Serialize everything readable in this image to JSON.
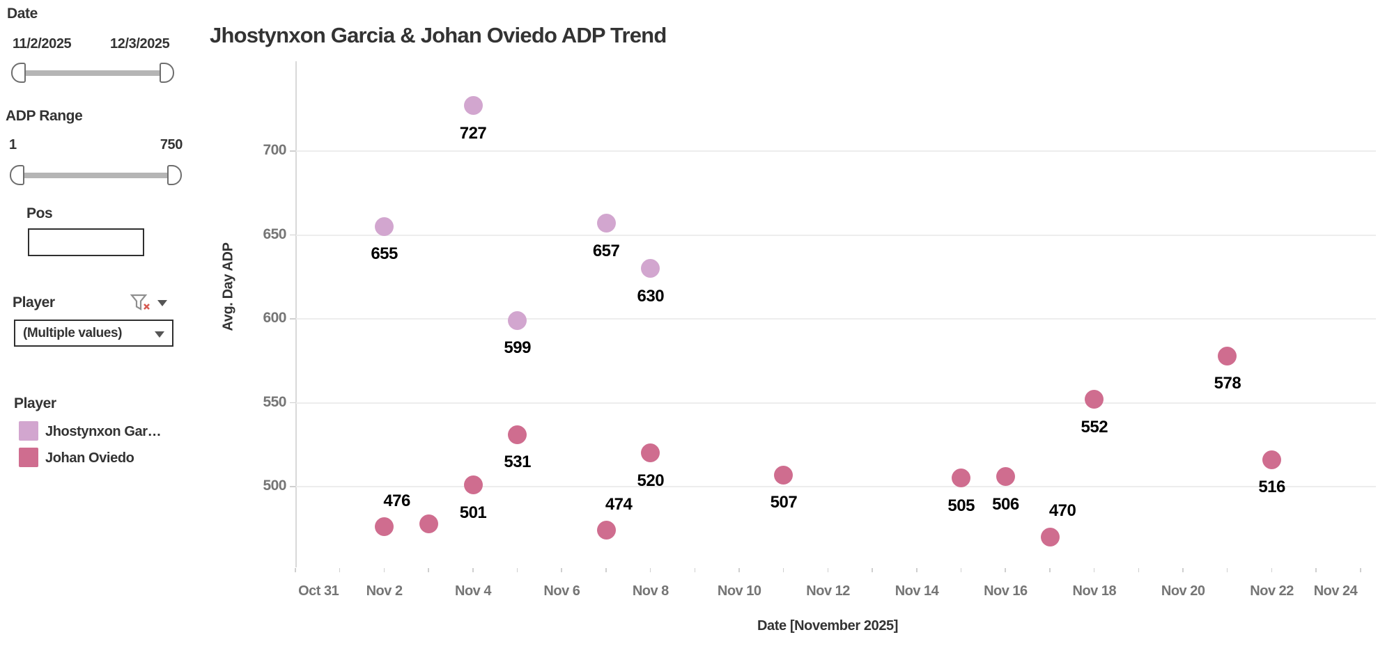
{
  "sidebar": {
    "date_filter": {
      "title": "Date",
      "start": "11/2/2025",
      "end": "12/3/2025"
    },
    "adp_filter": {
      "title": "ADP Range",
      "min": "1",
      "max": "750"
    },
    "pos_filter": {
      "title": "Pos",
      "value": "",
      "placeholder": ""
    },
    "player_filter": {
      "title": "Player",
      "selected": "(Multiple values)",
      "icons": [
        "funnel-with-red-x-icon",
        "caret-down-icon"
      ]
    }
  },
  "legend": {
    "title": "Player",
    "items": [
      {
        "label": "Jhostynxon Gar…",
        "color": "#d2a6cf"
      },
      {
        "label": "Johan Oviedo",
        "color": "#cf6d8f"
      }
    ]
  },
  "chart_data": {
    "type": "scatter",
    "title": "Jhostynxon Garcia & Johan Oviedo ADP Trend",
    "xlabel": "Date [November 2025]",
    "ylabel": "Avg. Day ADP",
    "x_tick_labels": [
      "Oct 31",
      "Nov 2",
      "Nov 4",
      "Nov 6",
      "Nov 8",
      "Nov 10",
      "Nov 12",
      "Nov 14",
      "Nov 16",
      "Nov 18",
      "Nov 20",
      "Nov 22",
      "Nov 24"
    ],
    "y_ticks": [
      700,
      650,
      600,
      550,
      500
    ],
    "ylim": [
      452,
      753
    ],
    "grid": "horizontal-only",
    "legend_position": "left-sidebar",
    "style": {
      "grid_color": "#ededed",
      "axis_color": "#d9d9d9",
      "tick_label_color": "#757575",
      "data_label_color": "#000000",
      "title_color": "#333333"
    },
    "series": [
      {
        "name": "Jhostynxon Garcia",
        "color": "#d2a6cf",
        "points": [
          {
            "date": "Nov 2",
            "day": 2,
            "value": 655,
            "label": "655",
            "label_pos": "below"
          },
          {
            "date": "Nov 4",
            "day": 4,
            "value": 727,
            "label": "727",
            "label_pos": "below"
          },
          {
            "date": "Nov 5",
            "day": 5,
            "value": 599,
            "label": "599",
            "label_pos": "below"
          },
          {
            "date": "Nov 7",
            "day": 7,
            "value": 657,
            "label": "657",
            "label_pos": "below"
          },
          {
            "date": "Nov 8",
            "day": 8,
            "value": 630,
            "label": "630",
            "label_pos": "below"
          }
        ]
      },
      {
        "name": "Johan Oviedo",
        "color": "#cf6d8f",
        "points": [
          {
            "date": "Nov 2",
            "day": 2,
            "value": 476,
            "label": "476",
            "label_pos": "above"
          },
          {
            "date": "Nov 3",
            "day": 3,
            "value": 478,
            "label": "",
            "label_pos": "none"
          },
          {
            "date": "Nov 4",
            "day": 4,
            "value": 501,
            "label": "501",
            "label_pos": "below"
          },
          {
            "date": "Nov 5",
            "day": 5,
            "value": 531,
            "label": "531",
            "label_pos": "below"
          },
          {
            "date": "Nov 7",
            "day": 7,
            "value": 474,
            "label": "474",
            "label_pos": "above"
          },
          {
            "date": "Nov 8",
            "day": 8,
            "value": 520,
            "label": "520",
            "label_pos": "below"
          },
          {
            "date": "Nov 11",
            "day": 11,
            "value": 507,
            "label": "507",
            "label_pos": "below"
          },
          {
            "date": "Nov 15",
            "day": 15,
            "value": 505,
            "label": "505",
            "label_pos": "below"
          },
          {
            "date": "Nov 16",
            "day": 16,
            "value": 506,
            "label": "506",
            "label_pos": "below"
          },
          {
            "date": "Nov 17",
            "day": 17,
            "value": 470,
            "label": "470",
            "label_pos": "above"
          },
          {
            "date": "Nov 18",
            "day": 18,
            "value": 552,
            "label": "552",
            "label_pos": "below"
          },
          {
            "date": "Nov 21",
            "day": 21,
            "value": 578,
            "label": "578",
            "label_pos": "below"
          },
          {
            "date": "Nov 22",
            "day": 22,
            "value": 516,
            "label": "516",
            "label_pos": "below"
          }
        ]
      }
    ]
  }
}
